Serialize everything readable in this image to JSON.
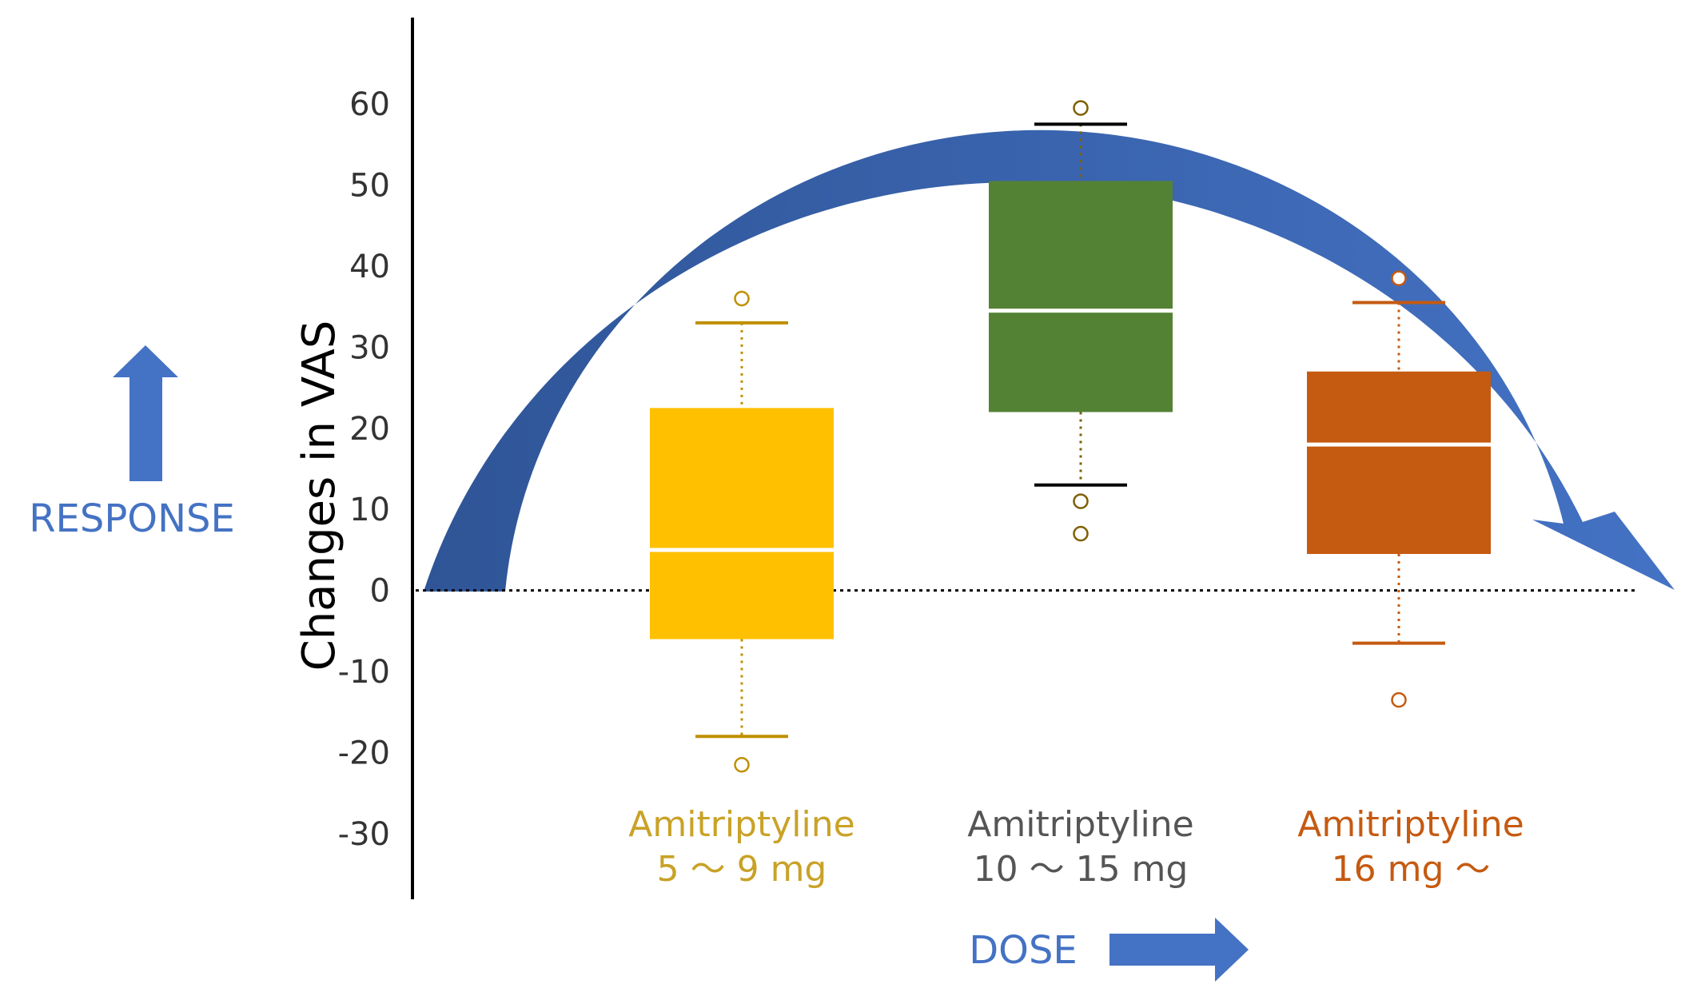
{
  "chart_data": {
    "type": "box",
    "ylabel": "Changes in VAS",
    "xlabel": "",
    "ylim": [
      -30,
      60
    ],
    "y_ticks": [
      60,
      50,
      40,
      30,
      20,
      10,
      0,
      -10,
      -20,
      -30
    ],
    "reference_line": 0,
    "groups": [
      {
        "label_line1": "Amitriptyline",
        "label_line2": "5 ～ 9 mg",
        "color": "#FFC000",
        "whisker_color": "#BF9000",
        "min": -18,
        "q1": -6,
        "median": 5,
        "q3": 22.5,
        "max": 33,
        "outliers": [
          36,
          -21.5
        ]
      },
      {
        "label_line1": "Amitriptyline",
        "label_line2": "10 ～ 15 mg",
        "color": "#548235",
        "whisker_color": "#000000",
        "min": 13,
        "q1": 22,
        "median": 34.5,
        "q3": 50.5,
        "max": 57.5,
        "outliers": [
          59.5,
          11,
          7
        ]
      },
      {
        "label_line1": "Amitriptyline",
        "label_line2": "16 mg ～",
        "color": "#C55A11",
        "whisker_color": "#C55A11",
        "min": -6.5,
        "q1": 4.5,
        "median": 18,
        "q3": 27,
        "max": 35.5,
        "outliers": [
          38.5,
          -13.5
        ]
      }
    ],
    "grid": false,
    "legend": "none"
  },
  "annotations": {
    "response_label": "RESPONSE",
    "dose_label": "DOSE",
    "arrow_color": "#4472C4",
    "arc_color_dark": "#2F5597",
    "arc_color_light": "#4472C4",
    "group_label_colors": [
      "#C9A227",
      "#555555",
      "#C55A11"
    ]
  }
}
